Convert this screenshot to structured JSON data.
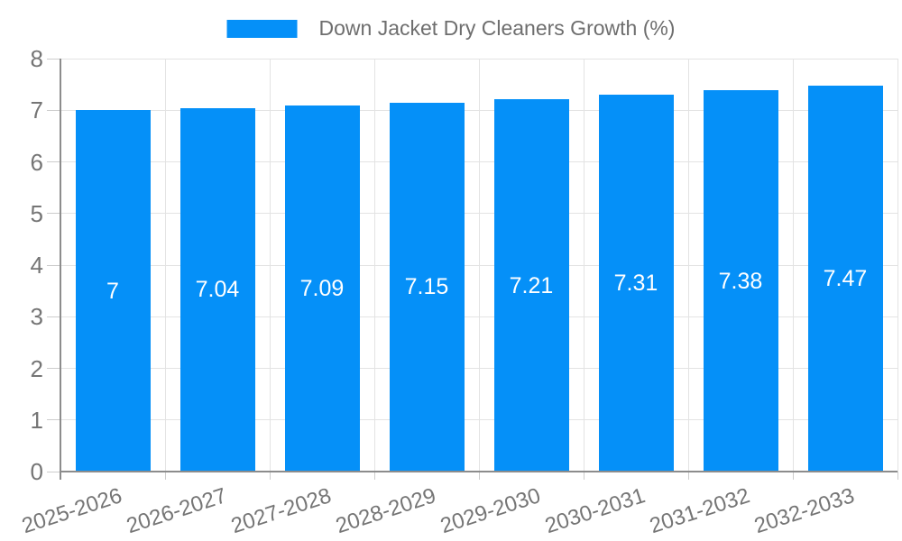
{
  "chart_data": {
    "type": "bar",
    "title": "",
    "legend": {
      "label": "Down Jacket Dry Cleaners Growth (%)",
      "position": "top-center"
    },
    "categories": [
      "2025-2026",
      "2026-2027",
      "2027-2028",
      "2028-2029",
      "2029-2030",
      "2030-2031",
      "2031-2032",
      "2032-2033"
    ],
    "values": [
      7,
      7.04,
      7.09,
      7.15,
      7.21,
      7.31,
      7.38,
      7.47
    ],
    "value_labels": [
      "7",
      "7.04",
      "7.09",
      "7.15",
      "7.21",
      "7.31",
      "7.38",
      "7.47"
    ],
    "xlabel": "",
    "ylabel": "",
    "ylim": [
      0,
      8
    ],
    "yticks": [
      0,
      1,
      2,
      3,
      4,
      5,
      6,
      7,
      8
    ],
    "grid": true,
    "bar_label_position": "inside-center",
    "x_label_rotation_deg": -18,
    "colors": {
      "bar": "#0590F8",
      "bar_label": "#ffffff",
      "axis_text": "#757575",
      "legend_text": "#6e6e6e",
      "axis_line": "#8c8c8c",
      "gridline": "#e3e3e3",
      "tick": "#cccccc",
      "background": "#ffffff"
    }
  }
}
